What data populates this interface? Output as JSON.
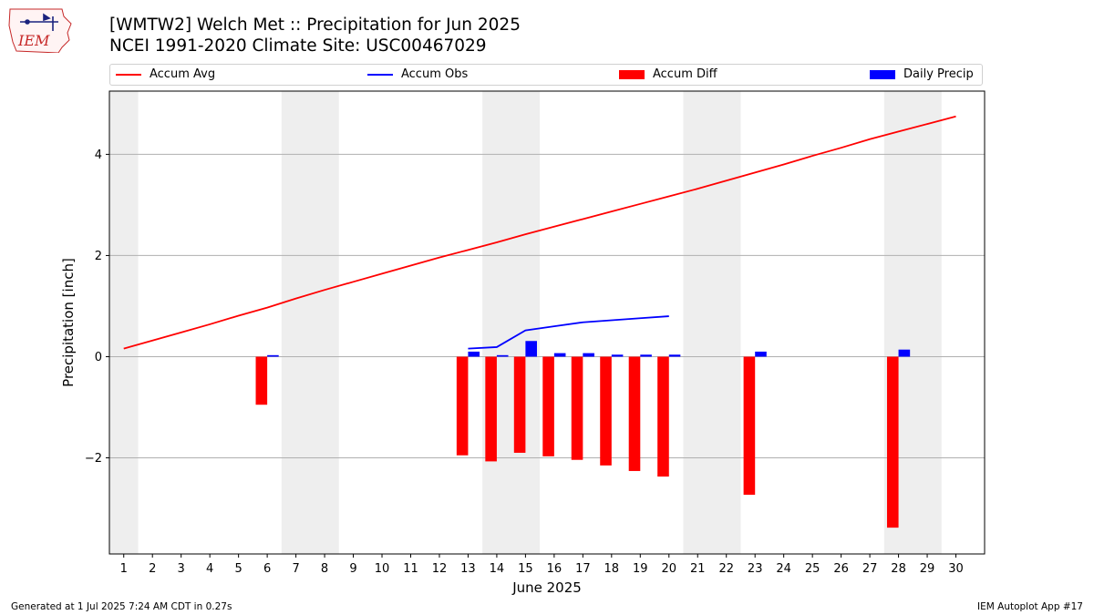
{
  "header": {
    "title_line1": "[WMTW2] Welch Met :: Precipitation for Jun 2025",
    "title_line2": "NCEI 1991-2020 Climate Site: USC00467029",
    "logo_text": "IEM"
  },
  "legend": {
    "placement": "top",
    "items": [
      {
        "label": "Accum Avg",
        "kind": "line",
        "color": "#ff0000"
      },
      {
        "label": "Accum Obs",
        "kind": "line",
        "color": "#0000ff"
      },
      {
        "label": "Accum Diff",
        "kind": "bar",
        "color": "#ff0000"
      },
      {
        "label": "Daily Precip",
        "kind": "bar",
        "color": "#0000ff"
      }
    ]
  },
  "footer": {
    "left": "Generated at 1 Jul 2025 7:24 AM CDT in 0.27s",
    "right": "IEM Autoplot App #17"
  },
  "chart_data": {
    "type": "bar",
    "xlabel": "June 2025",
    "ylabel": "Precipitation [inch]",
    "xlim": [
      0.5,
      31.0
    ],
    "ylim": [
      -3.9,
      5.25
    ],
    "yticks": [
      -2,
      0,
      2,
      4
    ],
    "ytick_labels": [
      "−2",
      "0",
      "2",
      "4"
    ],
    "xticks": [
      1,
      2,
      3,
      4,
      5,
      6,
      7,
      8,
      9,
      10,
      11,
      12,
      13,
      14,
      15,
      16,
      17,
      18,
      19,
      20,
      21,
      22,
      23,
      24,
      25,
      26,
      27,
      28,
      29,
      30
    ],
    "grid": "horizontal",
    "weekend_shading": [
      [
        0.5,
        1.5
      ],
      [
        6.5,
        8.5
      ],
      [
        13.5,
        15.5
      ],
      [
        20.5,
        22.5
      ],
      [
        27.5,
        29.5
      ]
    ],
    "colors": {
      "avg": "#ff0000",
      "obs": "#0000ff",
      "diff": "#ff0000",
      "daily": "#0000ff",
      "shade": "#eeeeee",
      "grid": "#b0b0b0"
    },
    "series": [
      {
        "name": "Accum Avg",
        "kind": "line",
        "x": [
          1,
          2,
          3,
          4,
          5,
          6,
          7,
          8,
          9,
          10,
          11,
          12,
          13,
          14,
          15,
          16,
          17,
          18,
          19,
          20,
          21,
          22,
          23,
          24,
          25,
          26,
          27,
          28,
          29,
          30
        ],
        "values": [
          0.16,
          0.32,
          0.48,
          0.64,
          0.81,
          0.97,
          1.15,
          1.32,
          1.48,
          1.64,
          1.8,
          1.96,
          2.11,
          2.26,
          2.42,
          2.57,
          2.72,
          2.87,
          3.02,
          3.17,
          3.32,
          3.48,
          3.64,
          3.8,
          3.97,
          4.13,
          4.3,
          4.45,
          4.6,
          4.75
        ]
      },
      {
        "name": "Accum Obs",
        "kind": "line",
        "x": [
          13,
          14,
          15,
          16,
          17,
          18,
          19,
          20
        ],
        "values": [
          0.16,
          0.19,
          0.52,
          0.6,
          0.68,
          0.72,
          0.76,
          0.8
        ]
      },
      {
        "name": "Accum Diff",
        "kind": "bar",
        "x": [
          6,
          13,
          14,
          15,
          16,
          17,
          18,
          19,
          20,
          23,
          28
        ],
        "values": [
          -0.95,
          -1.95,
          -2.07,
          -1.9,
          -1.97,
          -2.04,
          -2.15,
          -2.26,
          -2.37,
          -2.73,
          -3.38
        ]
      },
      {
        "name": "Daily Precip",
        "kind": "bar",
        "x": [
          6,
          13,
          14,
          15,
          16,
          17,
          18,
          19,
          20,
          23,
          28
        ],
        "values": [
          0.03,
          0.1,
          0.03,
          0.31,
          0.07,
          0.07,
          0.04,
          0.04,
          0.04,
          0.1,
          0.14
        ]
      }
    ]
  }
}
